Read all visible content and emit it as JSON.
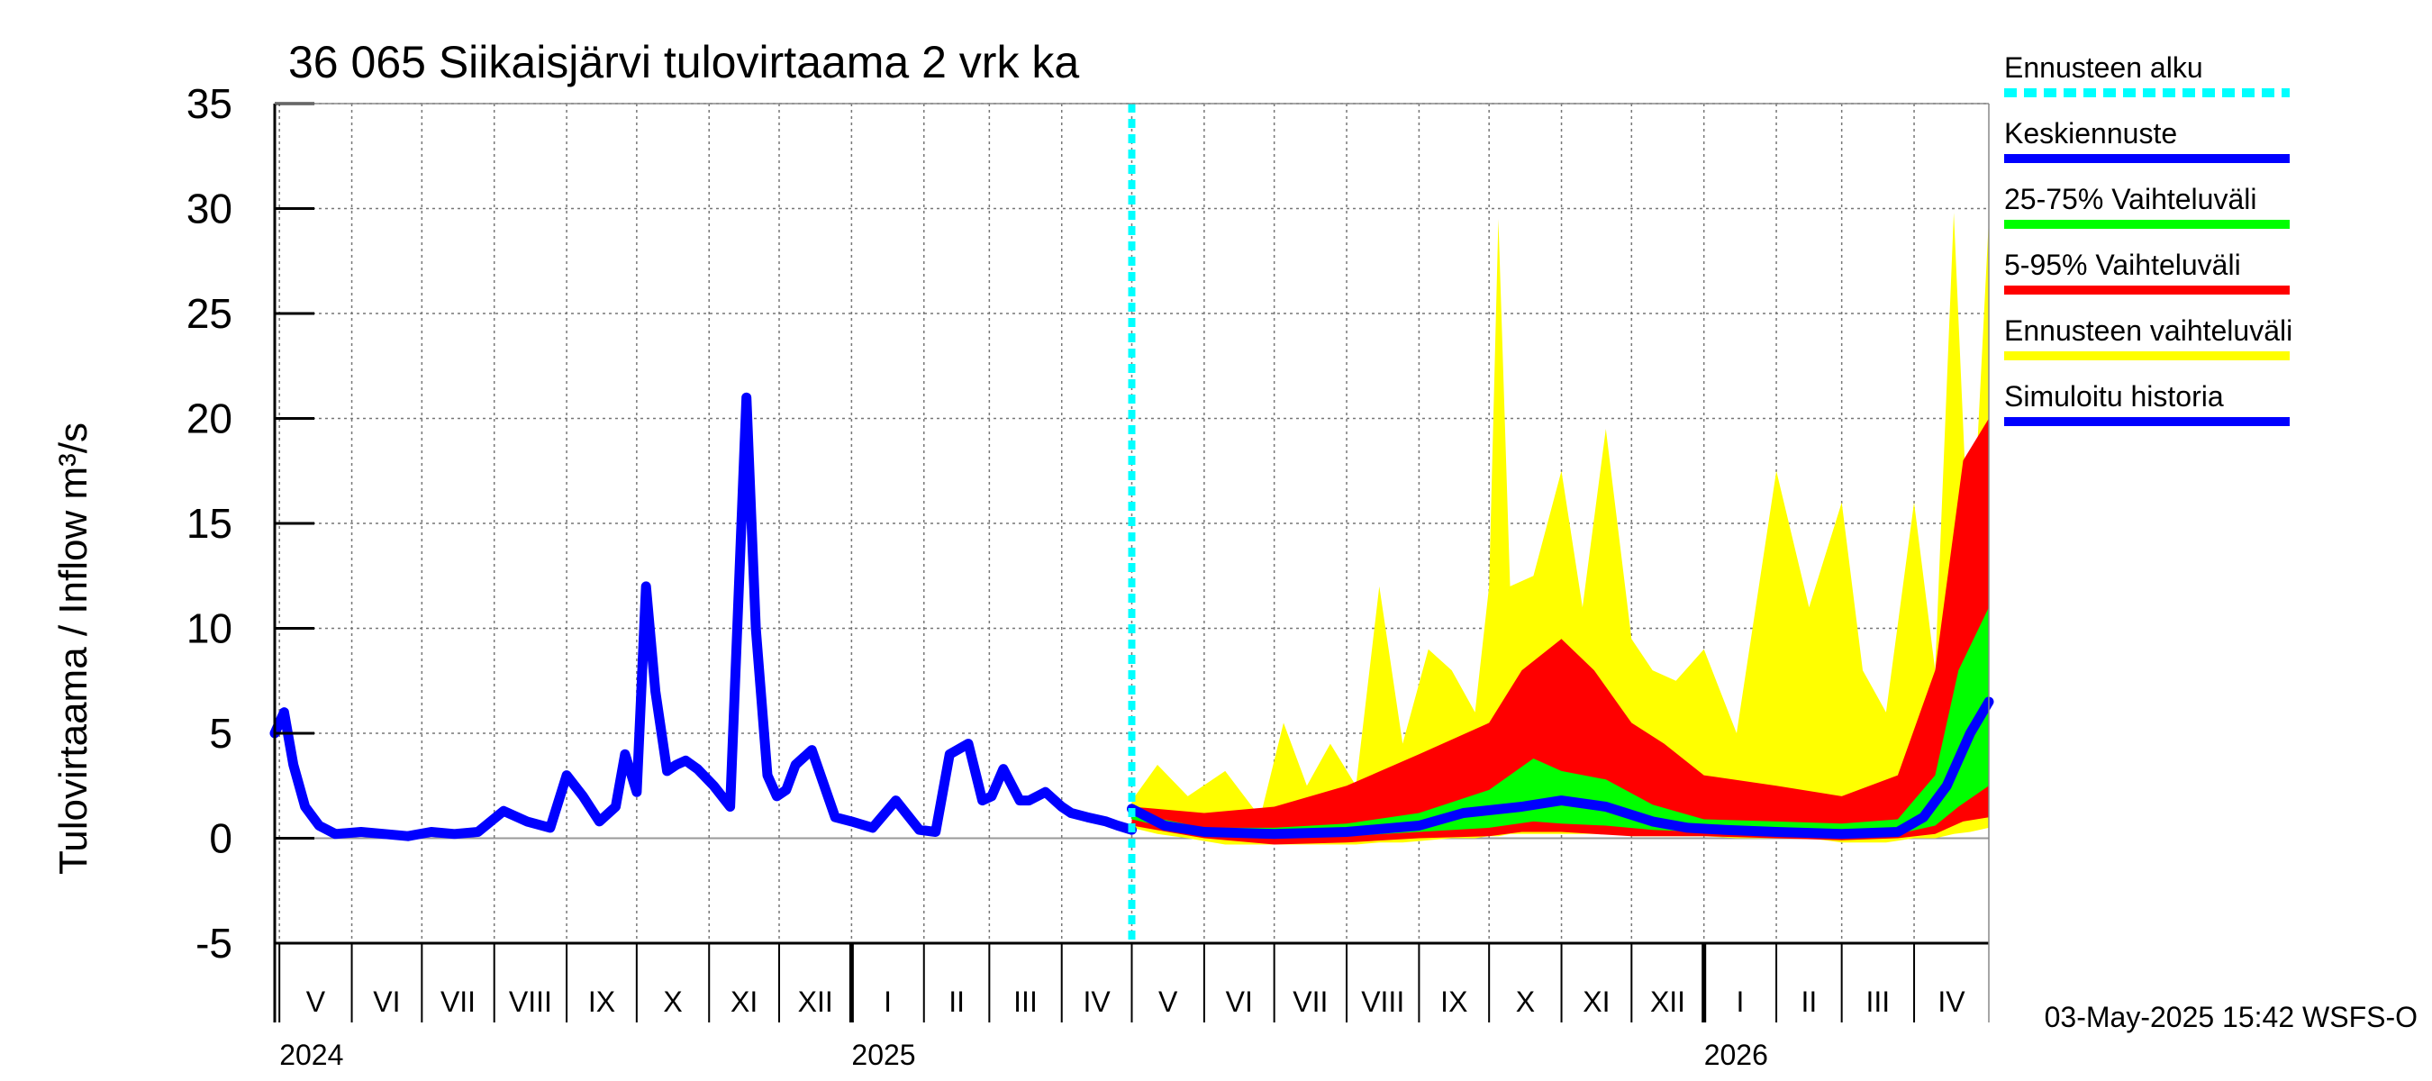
{
  "chart_data": {
    "type": "area",
    "title": "36 065 Siikaisjärvi tulovirtaama 2 vrk ka",
    "ylabel": "Tulovirtaama / Inflow    m³/s",
    "ylim": [
      -5,
      35
    ],
    "yticks": [
      -5,
      0,
      5,
      10,
      15,
      20,
      25,
      30,
      35
    ],
    "xlim": [
      "2024-04-29",
      "2026-05-03"
    ],
    "grid": true,
    "months": [
      {
        "label": "V",
        "start": "2024-05-01"
      },
      {
        "label": "VI",
        "start": "2024-06-01"
      },
      {
        "label": "VII",
        "start": "2024-07-01"
      },
      {
        "label": "VIII",
        "start": "2024-08-01"
      },
      {
        "label": "IX",
        "start": "2024-09-01"
      },
      {
        "label": "X",
        "start": "2024-10-01"
      },
      {
        "label": "XI",
        "start": "2024-11-01"
      },
      {
        "label": "XII",
        "start": "2024-12-01"
      },
      {
        "label": "I",
        "start": "2025-01-01"
      },
      {
        "label": "II",
        "start": "2025-02-01"
      },
      {
        "label": "III",
        "start": "2025-03-01"
      },
      {
        "label": "IV",
        "start": "2025-04-01"
      },
      {
        "label": "V",
        "start": "2025-05-01"
      },
      {
        "label": "VI",
        "start": "2025-06-01"
      },
      {
        "label": "VII",
        "start": "2025-07-01"
      },
      {
        "label": "VIII",
        "start": "2025-08-01"
      },
      {
        "label": "IX",
        "start": "2025-09-01"
      },
      {
        "label": "X",
        "start": "2025-10-01"
      },
      {
        "label": "XI",
        "start": "2025-11-01"
      },
      {
        "label": "XII",
        "start": "2025-12-01"
      },
      {
        "label": "I",
        "start": "2026-01-01"
      },
      {
        "label": "II",
        "start": "2026-02-01"
      },
      {
        "label": "III",
        "start": "2026-03-01"
      },
      {
        "label": "IV",
        "start": "2026-04-01"
      }
    ],
    "years": [
      {
        "label": "2024",
        "start": "2024-05-01"
      },
      {
        "label": "2025",
        "start": "2025-01-01"
      },
      {
        "label": "2026",
        "start": "2026-01-01"
      }
    ],
    "forecast_start": "2025-05-01",
    "series": [
      {
        "name": "Simuloitu historia",
        "color": "#0000ff",
        "x": [
          "2024-04-29",
          "2024-05-03",
          "2024-05-07",
          "2024-05-12",
          "2024-05-18",
          "2024-05-25",
          "2024-06-05",
          "2024-06-15",
          "2024-06-25",
          "2024-07-05",
          "2024-07-15",
          "2024-07-25",
          "2024-08-05",
          "2024-08-15",
          "2024-08-25",
          "2024-09-01",
          "2024-09-08",
          "2024-09-15",
          "2024-09-22",
          "2024-09-26",
          "2024-10-01",
          "2024-10-05",
          "2024-10-09",
          "2024-10-14",
          "2024-10-18",
          "2024-10-22",
          "2024-10-27",
          "2024-11-03",
          "2024-11-10",
          "2024-11-17",
          "2024-11-21",
          "2024-11-26",
          "2024-11-30",
          "2024-12-04",
          "2024-12-08",
          "2024-12-15",
          "2024-12-25",
          "2025-01-01",
          "2025-01-10",
          "2025-01-20",
          "2025-01-30",
          "2025-02-06",
          "2025-02-12",
          "2025-02-20",
          "2025-02-26",
          "2025-03-02",
          "2025-03-07",
          "2025-03-14",
          "2025-03-18",
          "2025-03-25",
          "2025-04-01",
          "2025-04-05",
          "2025-04-12",
          "2025-04-20",
          "2025-04-25",
          "2025-05-01"
        ],
        "y": [
          5.0,
          6.0,
          3.5,
          1.5,
          0.6,
          0.2,
          0.3,
          0.2,
          0.1,
          0.3,
          0.2,
          0.3,
          1.3,
          0.8,
          0.5,
          3.0,
          2.0,
          0.8,
          1.5,
          4.0,
          2.2,
          12.0,
          7.0,
          3.2,
          3.5,
          3.7,
          3.3,
          2.5,
          1.5,
          21.0,
          10.0,
          3.0,
          2.0,
          2.3,
          3.5,
          4.2,
          1.0,
          0.8,
          0.5,
          1.8,
          0.4,
          0.3,
          4.0,
          4.5,
          1.8,
          2.0,
          3.3,
          1.8,
          1.8,
          2.2,
          1.5,
          1.2,
          1.0,
          0.8,
          0.6,
          0.4
        ]
      },
      {
        "name": "Keskiennuste",
        "color": "#0000ff",
        "x": [
          "2025-05-01",
          "2025-05-15",
          "2025-06-01",
          "2025-07-01",
          "2025-08-01",
          "2025-09-01",
          "2025-09-20",
          "2025-10-15",
          "2025-11-01",
          "2025-11-20",
          "2025-12-10",
          "2025-12-25",
          "2026-01-10",
          "2026-02-01",
          "2026-03-01",
          "2026-03-25",
          "2026-04-05",
          "2026-04-15",
          "2026-04-25",
          "2026-05-03"
        ],
        "y": [
          1.4,
          0.6,
          0.3,
          0.2,
          0.3,
          0.6,
          1.2,
          1.5,
          1.8,
          1.5,
          0.8,
          0.5,
          0.4,
          0.3,
          0.2,
          0.3,
          1.0,
          2.5,
          5.0,
          6.5
        ]
      },
      {
        "name": "25-75% Vaihteluväli",
        "color": "#00ff00",
        "x": [
          "2025-05-01",
          "2025-06-01",
          "2025-07-01",
          "2025-08-01",
          "2025-09-01",
          "2025-10-01",
          "2025-10-20",
          "2025-11-01",
          "2025-11-20",
          "2025-12-10",
          "2026-01-01",
          "2026-02-01",
          "2026-03-01",
          "2026-03-25",
          "2026-04-10",
          "2026-04-20",
          "2026-05-03"
        ],
        "low": [
          0.9,
          0.1,
          0.0,
          0.1,
          0.3,
          0.5,
          0.8,
          0.7,
          0.6,
          0.4,
          0.3,
          0.2,
          0.1,
          0.2,
          0.6,
          1.5,
          2.5
        ],
        "high": [
          1.2,
          0.5,
          0.5,
          0.7,
          1.2,
          2.3,
          3.8,
          3.2,
          2.8,
          1.6,
          0.9,
          0.8,
          0.7,
          0.9,
          3.0,
          8.0,
          11.0
        ]
      },
      {
        "name": "5-95% Vaihteluväli",
        "color": "#ff0000",
        "x": [
          "2025-05-01",
          "2025-06-01",
          "2025-07-01",
          "2025-08-01",
          "2025-09-01",
          "2025-10-01",
          "2025-10-15",
          "2025-11-01",
          "2025-11-15",
          "2025-12-01",
          "2025-12-15",
          "2026-01-01",
          "2026-02-01",
          "2026-03-01",
          "2026-03-25",
          "2026-04-10",
          "2026-04-22",
          "2026-05-03"
        ],
        "low": [
          0.6,
          0.0,
          -0.3,
          -0.2,
          0.0,
          0.1,
          0.3,
          0.3,
          0.2,
          0.1,
          0.1,
          0.1,
          0.0,
          -0.1,
          0.0,
          0.2,
          0.8,
          1.0
        ],
        "high": [
          1.5,
          1.2,
          1.5,
          2.5,
          4.0,
          5.5,
          8.0,
          9.5,
          8.0,
          5.5,
          4.5,
          3.0,
          2.5,
          2.0,
          3.0,
          8.0,
          18.0,
          20.0
        ]
      },
      {
        "name": "Ennusteen vaihteluväli",
        "color": "#ffff00",
        "x": [
          "2025-05-01",
          "2025-05-12",
          "2025-05-25",
          "2025-06-10",
          "2025-06-25",
          "2025-07-05",
          "2025-07-15",
          "2025-07-25",
          "2025-08-05",
          "2025-08-15",
          "2025-08-25",
          "2025-09-05",
          "2025-09-15",
          "2025-09-25",
          "2025-10-01",
          "2025-10-05",
          "2025-10-10",
          "2025-10-20",
          "2025-11-01",
          "2025-11-10",
          "2025-11-20",
          "2025-12-01",
          "2025-12-10",
          "2025-12-20",
          "2026-01-01",
          "2026-01-15",
          "2026-02-01",
          "2026-02-15",
          "2026-03-01",
          "2026-03-10",
          "2026-03-20",
          "2026-04-01",
          "2026-04-10",
          "2026-04-18",
          "2026-04-25",
          "2026-05-03"
        ],
        "low": [
          0.5,
          0.2,
          0.0,
          -0.3,
          -0.3,
          -0.3,
          -0.3,
          -0.3,
          -0.3,
          -0.2,
          -0.2,
          -0.1,
          0.0,
          0.0,
          0.1,
          0.1,
          0.2,
          0.2,
          0.2,
          0.2,
          0.2,
          0.1,
          0.1,
          0.1,
          0.1,
          0.0,
          0.0,
          0.0,
          -0.2,
          -0.2,
          -0.2,
          0.0,
          0.0,
          0.2,
          0.3,
          0.5
        ],
        "high": [
          1.8,
          3.5,
          2.0,
          3.2,
          1.0,
          5.5,
          2.5,
          4.5,
          2.5,
          12.0,
          4.5,
          9.0,
          8.0,
          6.0,
          12.0,
          29.5,
          12.0,
          12.5,
          17.5,
          11.0,
          19.5,
          9.5,
          8.0,
          7.5,
          9.0,
          5.0,
          17.5,
          11.0,
          16.0,
          8.0,
          6.0,
          16.0,
          8.0,
          29.8,
          12.0,
          29.5
        ]
      }
    ],
    "legend": [
      {
        "label": "Ennusteen alku",
        "color": "#00ffff",
        "style": "dashed"
      },
      {
        "label": "Keskiennuste",
        "color": "#0000ff",
        "style": "solid"
      },
      {
        "label": "25-75% Vaihteluväli",
        "color": "#00ff00",
        "style": "solid"
      },
      {
        "label": "5-95% Vaihteluväli",
        "color": "#ff0000",
        "style": "solid"
      },
      {
        "label": "Ennusteen vaihteluväli",
        "color": "#ffff00",
        "style": "solid"
      },
      {
        "label": "Simuloitu historia",
        "color": "#0000ff",
        "style": "solid"
      }
    ],
    "legend_position": "right",
    "footer": "03-May-2025 15:42 WSFS-O"
  }
}
